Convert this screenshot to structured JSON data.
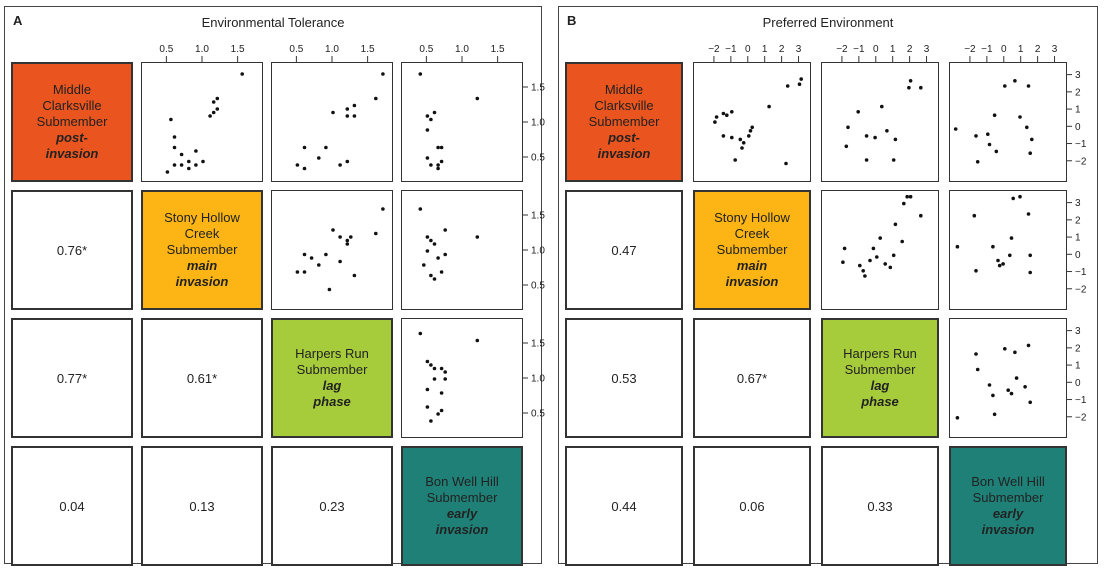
{
  "panels": [
    {
      "letter": "A",
      "title": "Environmental Tolerance",
      "labels": [
        {
          "lines": [
            "Middle",
            "Clarksville",
            "Submember"
          ],
          "stage": [
            "post-",
            "invasion"
          ],
          "color": "#e9541f"
        },
        {
          "lines": [
            "Stony Hollow",
            "Creek",
            "Submember"
          ],
          "stage": [
            "main",
            "invasion"
          ],
          "color": "#fcb514"
        },
        {
          "lines": [
            "Harpers Run",
            "Submember"
          ],
          "stage": [
            "lag",
            "phase"
          ],
          "color": "#a6cc3c"
        },
        {
          "lines": [
            "Bon Well Hill",
            "Submember"
          ],
          "stage": [
            "early",
            "invasion"
          ],
          "color": "#1e8077"
        }
      ],
      "correlations": [
        {
          "row": 1,
          "col": 0,
          "value": "0.76*"
        },
        {
          "row": 2,
          "col": 0,
          "value": "0.77*"
        },
        {
          "row": 2,
          "col": 1,
          "value": "0.61*"
        },
        {
          "row": 3,
          "col": 0,
          "value": "0.04"
        },
        {
          "row": 3,
          "col": 1,
          "value": "0.13"
        },
        {
          "row": 3,
          "col": 2,
          "value": "0.23"
        }
      ]
    },
    {
      "letter": "B",
      "title": "Preferred Environment",
      "labels": [
        {
          "lines": [
            "Middle",
            "Clarksville",
            "Submember"
          ],
          "stage": [
            "post-",
            "invasion"
          ],
          "color": "#e9541f"
        },
        {
          "lines": [
            "Stony Hollow",
            "Creek",
            "Submember"
          ],
          "stage": [
            "main",
            "invasion"
          ],
          "color": "#fcb514"
        },
        {
          "lines": [
            "Harpers Run",
            "Submember"
          ],
          "stage": [
            "lag",
            "phase"
          ],
          "color": "#a6cc3c"
        },
        {
          "lines": [
            "Bon Well Hill",
            "Submember"
          ],
          "stage": [
            "early",
            "invasion"
          ],
          "color": "#1e8077"
        }
      ],
      "correlations": [
        {
          "row": 1,
          "col": 0,
          "value": "0.47"
        },
        {
          "row": 2,
          "col": 0,
          "value": "0.53"
        },
        {
          "row": 2,
          "col": 1,
          "value": "0.67*"
        },
        {
          "row": 3,
          "col": 0,
          "value": "0.44"
        },
        {
          "row": 3,
          "col": 1,
          "value": "0.06"
        },
        {
          "row": 3,
          "col": 2,
          "value": "0.33"
        }
      ]
    }
  ],
  "chart_data": [
    {
      "type": "scatter",
      "title": "Environmental Tolerance",
      "axis_range": [
        0.2,
        1.8
      ],
      "top_tick_labels": [
        [
          "0.5",
          "1.0",
          "1.5"
        ],
        [
          "0.5",
          "1.0",
          "1.5"
        ],
        [
          "0.5",
          "1.0",
          "1.5"
        ]
      ],
      "right_tick_labels": [
        [
          "0.5",
          "1.0",
          "1.5"
        ],
        [
          "0.5",
          "1.0",
          "1.5"
        ],
        [
          "0.5",
          "1.0",
          "1.5"
        ]
      ],
      "scatter_panels": [
        {
          "row": 0,
          "col": 1,
          "points": [
            [
              0.5,
              0.3
            ],
            [
              0.6,
              0.4
            ],
            [
              0.7,
              0.4
            ],
            [
              0.8,
              0.35
            ],
            [
              0.8,
              0.45
            ],
            [
              0.9,
              0.4
            ],
            [
              1.0,
              0.45
            ],
            [
              0.6,
              0.65
            ],
            [
              0.7,
              0.55
            ],
            [
              0.9,
              0.6
            ],
            [
              0.6,
              0.8
            ],
            [
              0.55,
              1.05
            ],
            [
              1.1,
              1.1
            ],
            [
              1.15,
              1.15
            ],
            [
              1.2,
              1.2
            ],
            [
              1.15,
              1.3
            ],
            [
              1.2,
              1.35
            ],
            [
              1.55,
              1.7
            ]
          ]
        },
        {
          "row": 0,
          "col": 2,
          "points": [
            [
              0.5,
              0.4
            ],
            [
              0.6,
              0.35
            ],
            [
              0.8,
              0.5
            ],
            [
              0.6,
              0.65
            ],
            [
              0.9,
              0.65
            ],
            [
              1.1,
              0.4
            ],
            [
              1.2,
              0.45
            ],
            [
              1.0,
              1.15
            ],
            [
              1.2,
              1.1
            ],
            [
              1.3,
              1.1
            ],
            [
              1.2,
              1.2
            ],
            [
              1.3,
              1.25
            ],
            [
              1.6,
              1.35
            ],
            [
              1.7,
              1.7
            ]
          ]
        },
        {
          "row": 0,
          "col": 3,
          "points": [
            [
              0.4,
              1.7
            ],
            [
              0.5,
              1.1
            ],
            [
              0.55,
              1.05
            ],
            [
              0.5,
              0.9
            ],
            [
              0.6,
              1.15
            ],
            [
              0.5,
              0.5
            ],
            [
              0.55,
              0.4
            ],
            [
              0.65,
              0.4
            ],
            [
              0.7,
              0.45
            ],
            [
              0.65,
              0.65
            ],
            [
              0.7,
              0.65
            ],
            [
              0.65,
              0.35
            ],
            [
              1.2,
              1.35
            ]
          ]
        },
        {
          "row": 1,
          "col": 2,
          "points": [
            [
              0.5,
              0.7
            ],
            [
              0.6,
              0.7
            ],
            [
              0.6,
              0.95
            ],
            [
              0.8,
              0.8
            ],
            [
              0.9,
              0.95
            ],
            [
              0.7,
              0.9
            ],
            [
              1.0,
              1.3
            ],
            [
              1.1,
              1.2
            ],
            [
              1.2,
              1.15
            ],
            [
              1.25,
              1.2
            ],
            [
              1.2,
              1.1
            ],
            [
              1.1,
              0.85
            ],
            [
              1.3,
              0.65
            ],
            [
              0.95,
              0.45
            ],
            [
              1.6,
              1.25
            ],
            [
              1.7,
              1.6
            ]
          ]
        },
        {
          "row": 1,
          "col": 3,
          "points": [
            [
              0.4,
              1.6
            ],
            [
              0.5,
              1.2
            ],
            [
              0.55,
              1.15
            ],
            [
              0.5,
              1.0
            ],
            [
              0.45,
              0.8
            ],
            [
              0.6,
              1.1
            ],
            [
              0.65,
              0.9
            ],
            [
              0.75,
              0.95
            ],
            [
              0.75,
              1.3
            ],
            [
              0.6,
              0.6
            ],
            [
              0.55,
              0.65
            ],
            [
              0.7,
              0.7
            ],
            [
              1.2,
              1.2
            ]
          ]
        },
        {
          "row": 2,
          "col": 3,
          "points": [
            [
              0.4,
              1.65
            ],
            [
              0.5,
              1.25
            ],
            [
              0.55,
              1.2
            ],
            [
              0.6,
              1.15
            ],
            [
              0.7,
              1.15
            ],
            [
              0.75,
              1.1
            ],
            [
              0.75,
              1.0
            ],
            [
              0.6,
              1.0
            ],
            [
              0.5,
              0.85
            ],
            [
              0.7,
              0.8
            ],
            [
              0.5,
              0.6
            ],
            [
              0.55,
              0.4
            ],
            [
              0.65,
              0.5
            ],
            [
              0.7,
              0.55
            ],
            [
              1.2,
              1.55
            ]
          ]
        }
      ]
    },
    {
      "type": "scatter",
      "title": "Preferred Environment",
      "axis_range": [
        -3,
        3.5
      ],
      "top_tick_labels": [
        [
          "−2",
          "−1",
          "0",
          "1",
          "2",
          "3"
        ],
        [
          "−2",
          "−1",
          "0",
          "1",
          "2",
          "3"
        ],
        [
          "−2",
          "−1",
          "0",
          "1",
          "2",
          "3"
        ]
      ],
      "right_tick_labels": [
        [
          "−2",
          "−1",
          "0",
          "1",
          "2",
          "3"
        ],
        [
          "−2",
          "−1",
          "0",
          "1",
          "2",
          "3"
        ],
        [
          "−2",
          "−1",
          "0",
          "1",
          "2",
          "3"
        ]
      ],
      "scatter_panels": [
        {
          "row": 0,
          "col": 1,
          "points": [
            [
              -2.0,
              0.3
            ],
            [
              -1.9,
              0.6
            ],
            [
              -1.5,
              0.8
            ],
            [
              -1.3,
              0.7
            ],
            [
              -1.0,
              0.9
            ],
            [
              -1.5,
              -0.5
            ],
            [
              -1.0,
              -0.6
            ],
            [
              -0.5,
              -0.7
            ],
            [
              -0.3,
              -0.9
            ],
            [
              0.0,
              -0.5
            ],
            [
              0.1,
              -0.2
            ],
            [
              0.2,
              0.0
            ],
            [
              -0.4,
              -1.2
            ],
            [
              -0.8,
              -1.9
            ],
            [
              1.2,
              1.2
            ],
            [
              2.3,
              2.4
            ],
            [
              3.0,
              2.5
            ],
            [
              3.1,
              2.8
            ],
            [
              2.2,
              -2.1
            ]
          ]
        },
        {
          "row": 0,
          "col": 2,
          "points": [
            [
              -1.8,
              -1.1
            ],
            [
              -1.7,
              0.0
            ],
            [
              -1.1,
              0.9
            ],
            [
              -0.6,
              -1.9
            ],
            [
              -0.6,
              -0.5
            ],
            [
              -0.1,
              -0.6
            ],
            [
              0.3,
              1.2
            ],
            [
              0.6,
              -0.2
            ],
            [
              1.0,
              -1.9
            ],
            [
              1.1,
              -0.7
            ],
            [
              1.9,
              2.3
            ],
            [
              2.0,
              2.7
            ],
            [
              2.6,
              2.3
            ]
          ]
        },
        {
          "row": 0,
          "col": 3,
          "points": [
            [
              -2.9,
              -0.1
            ],
            [
              -1.7,
              -0.5
            ],
            [
              -1.6,
              -2.0
            ],
            [
              -1.0,
              -0.4
            ],
            [
              -0.9,
              -1.0
            ],
            [
              -0.6,
              0.7
            ],
            [
              -0.5,
              -1.4
            ],
            [
              0.0,
              2.4
            ],
            [
              0.6,
              2.7
            ],
            [
              0.9,
              0.6
            ],
            [
              1.4,
              2.4
            ],
            [
              1.3,
              0.0
            ],
            [
              1.6,
              -0.7
            ],
            [
              1.5,
              -1.5
            ]
          ]
        },
        {
          "row": 1,
          "col": 2,
          "points": [
            [
              -2.0,
              -0.4
            ],
            [
              -1.9,
              0.4
            ],
            [
              -1.0,
              -0.6
            ],
            [
              -0.8,
              -0.9
            ],
            [
              -0.7,
              -1.2
            ],
            [
              -0.4,
              -0.3
            ],
            [
              -0.2,
              0.4
            ],
            [
              0.0,
              -0.1
            ],
            [
              0.2,
              1.0
            ],
            [
              0.5,
              -0.5
            ],
            [
              0.8,
              -0.7
            ],
            [
              1.0,
              0.0
            ],
            [
              1.1,
              1.8
            ],
            [
              1.5,
              0.8
            ],
            [
              1.8,
              3.4
            ],
            [
              2.0,
              3.4
            ],
            [
              2.6,
              2.3
            ],
            [
              1.6,
              3.0
            ]
          ]
        },
        {
          "row": 1,
          "col": 3,
          "points": [
            [
              -2.8,
              0.5
            ],
            [
              -1.8,
              2.3
            ],
            [
              -1.7,
              -0.9
            ],
            [
              -0.7,
              0.5
            ],
            [
              -0.4,
              -0.3
            ],
            [
              -0.3,
              -0.6
            ],
            [
              -0.1,
              -0.5
            ],
            [
              0.3,
              0.0
            ],
            [
              0.4,
              1.0
            ],
            [
              0.5,
              3.3
            ],
            [
              0.9,
              3.4
            ],
            [
              1.4,
              2.4
            ],
            [
              1.5,
              0.0
            ],
            [
              1.5,
              -1.0
            ]
          ]
        },
        {
          "row": 2,
          "col": 3,
          "points": [
            [
              -2.8,
              -2.0
            ],
            [
              -1.7,
              1.7
            ],
            [
              -1.6,
              0.8
            ],
            [
              -0.9,
              -0.1
            ],
            [
              -0.7,
              -0.7
            ],
            [
              -0.6,
              -1.8
            ],
            [
              0.0,
              2.0
            ],
            [
              0.2,
              -0.4
            ],
            [
              0.4,
              -0.6
            ],
            [
              0.6,
              1.8
            ],
            [
              0.7,
              0.3
            ],
            [
              1.2,
              -0.2
            ],
            [
              1.4,
              2.2
            ],
            [
              1.5,
              -1.1
            ]
          ]
        }
      ]
    }
  ]
}
